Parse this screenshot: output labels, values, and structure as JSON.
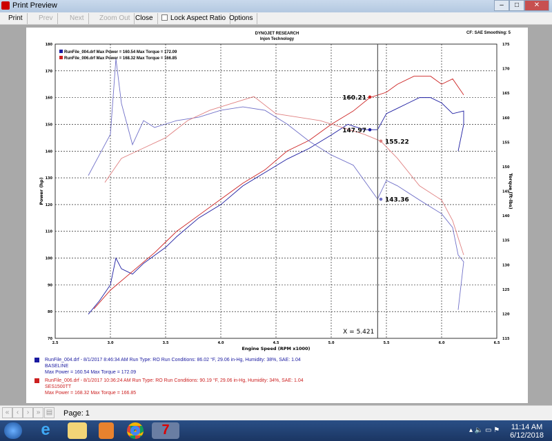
{
  "window": {
    "title": "Print Preview"
  },
  "toolbar": {
    "print": "Print",
    "prev": "Prev",
    "next": "Next",
    "zoom_out": "Zoom Out",
    "close": "Close",
    "lock_aspect": "Lock Aspect Ratio",
    "lock_checked": false,
    "options": "Options"
  },
  "report": {
    "company": "DYNOJET RESEARCH",
    "subtitle": "Injon Technology",
    "settings": "CF: SAE  Smoothing: 5",
    "legend": [
      "RunFile_004.drf Max Power = 160.54     Max Torque = 172.09",
      "RunFile_006.drf Max Power = 168.32     Max Torque = 166.85"
    ],
    "runs": [
      {
        "line1": "RunFile_004.drf - 8/1/2017 8:46:34 AM  Run Type: RO  Run Conditions: 86.02 °F, 29.06 in-Hg,  Humidity:  38%, SAE: 1.04",
        "line2": "BASELINE",
        "line3": "Max Power = 160.54  Max Torque = 172.09"
      },
      {
        "line1": "RunFile_006.drf - 8/1/2017 10:36:24 AM  Run Type: RO  Run Conditions: 90.19 °F, 29.06 in-Hg,  Humidity:  34%, SAE: 1.04",
        "line2": "SES1500TT",
        "line3": "Max Power = 168.32  Max Torque = 166.85"
      }
    ]
  },
  "chart_data": {
    "type": "line",
    "xlabel": "Engine Speed (RPM x1000)",
    "ylabel": "Power (hp)",
    "y2label": "Torque (ft-lbs)",
    "xlim": [
      2.5,
      6.5
    ],
    "ylim": [
      70,
      180
    ],
    "y2lim": [
      115,
      175
    ],
    "xticks": [
      "2.5",
      "3.0",
      "3.5",
      "4.0",
      "4.5",
      "5.0",
      "5.5",
      "6.0",
      "6.5"
    ],
    "yticks": [
      "70",
      "80",
      "90",
      "100",
      "110",
      "120",
      "130",
      "140",
      "150",
      "160",
      "170",
      "180"
    ],
    "y2ticks": [
      "115",
      "120",
      "125",
      "130",
      "135",
      "140",
      "145",
      "150",
      "155",
      "160",
      "165",
      "170",
      "175"
    ],
    "grid": true,
    "legend": "top-left",
    "cursor": {
      "x": 5.421,
      "label": "X = 5.421"
    },
    "markers": [
      {
        "label": "160.21",
        "series": 1,
        "axis": "power",
        "x": 5.35,
        "y": 160.21
      },
      {
        "label": "147.97",
        "series": 0,
        "axis": "power",
        "x": 5.35,
        "y": 147.97
      },
      {
        "label": "155.22",
        "series": 1,
        "axis": "torque",
        "x": 5.45,
        "y": 155.22
      },
      {
        "label": "143.36",
        "series": 0,
        "axis": "torque",
        "x": 5.45,
        "y": 143.36
      }
    ],
    "series": [
      {
        "name": "RunFile_004.drf",
        "kind": "power",
        "color": "#1a1aa0",
        "axis": "left",
        "points": [
          [
            2.8,
            79
          ],
          [
            2.9,
            84
          ],
          [
            3.0,
            90
          ],
          [
            3.05,
            100
          ],
          [
            3.1,
            96
          ],
          [
            3.2,
            94
          ],
          [
            3.3,
            98
          ],
          [
            3.4,
            101
          ],
          [
            3.5,
            104
          ],
          [
            3.6,
            108
          ],
          [
            3.8,
            115
          ],
          [
            4.0,
            120
          ],
          [
            4.2,
            127
          ],
          [
            4.4,
            132
          ],
          [
            4.6,
            137
          ],
          [
            4.8,
            141
          ],
          [
            5.0,
            146
          ],
          [
            5.15,
            150
          ],
          [
            5.3,
            148
          ],
          [
            5.42,
            148
          ],
          [
            5.5,
            154
          ],
          [
            5.6,
            156
          ],
          [
            5.7,
            158
          ],
          [
            5.8,
            160
          ],
          [
            5.9,
            160
          ],
          [
            6.0,
            158
          ],
          [
            6.1,
            154
          ],
          [
            6.2,
            155
          ],
          [
            6.2,
            150
          ],
          [
            6.15,
            140
          ]
        ]
      },
      {
        "name": "RunFile_006.drf",
        "kind": "power",
        "color": "#cc2020",
        "axis": "left",
        "points": [
          [
            2.85,
            81
          ],
          [
            3.0,
            88
          ],
          [
            3.2,
            95
          ],
          [
            3.4,
            102
          ],
          [
            3.5,
            106
          ],
          [
            3.6,
            110
          ],
          [
            3.8,
            116
          ],
          [
            4.0,
            122
          ],
          [
            4.2,
            128
          ],
          [
            4.4,
            133
          ],
          [
            4.6,
            140
          ],
          [
            4.8,
            144
          ],
          [
            5.0,
            150
          ],
          [
            5.2,
            155
          ],
          [
            5.35,
            160
          ],
          [
            5.5,
            162
          ],
          [
            5.6,
            165
          ],
          [
            5.75,
            168
          ],
          [
            5.9,
            168
          ],
          [
            6.0,
            165
          ],
          [
            6.1,
            167
          ],
          [
            6.2,
            161
          ]
        ]
      },
      {
        "name": "RunFile_004.drf",
        "kind": "torque",
        "color": "#7070c8",
        "axis": "right",
        "points": [
          [
            2.8,
            148.2
          ],
          [
            2.9,
            152.4
          ],
          [
            3.0,
            156.6
          ],
          [
            3.05,
            172.0
          ],
          [
            3.1,
            162.9
          ],
          [
            3.2,
            154.5
          ],
          [
            3.3,
            159.4
          ],
          [
            3.4,
            158.0
          ],
          [
            3.5,
            158.7
          ],
          [
            3.6,
            159.4
          ],
          [
            3.8,
            160.1
          ],
          [
            4.0,
            161.5
          ],
          [
            4.2,
            162.2
          ],
          [
            4.4,
            161.5
          ],
          [
            4.6,
            158.7
          ],
          [
            4.8,
            155.2
          ],
          [
            5.0,
            152.4
          ],
          [
            5.2,
            150.3
          ],
          [
            5.42,
            143.4
          ],
          [
            5.5,
            147.2
          ],
          [
            5.6,
            146.1
          ],
          [
            5.8,
            143.2
          ],
          [
            6.0,
            140.4
          ],
          [
            6.1,
            137.6
          ],
          [
            6.15,
            132.0
          ],
          [
            6.2,
            130.6
          ],
          [
            6.15,
            120.8
          ]
        ]
      },
      {
        "name": "RunFile_006.drf",
        "kind": "torque",
        "color": "#e08080",
        "axis": "right",
        "points": [
          [
            2.95,
            146.8
          ],
          [
            3.1,
            151.7
          ],
          [
            3.3,
            153.8
          ],
          [
            3.5,
            155.9
          ],
          [
            3.7,
            159.4
          ],
          [
            3.9,
            161.5
          ],
          [
            4.1,
            162.9
          ],
          [
            4.3,
            164.3
          ],
          [
            4.5,
            160.8
          ],
          [
            4.7,
            160.1
          ],
          [
            4.9,
            159.4
          ],
          [
            5.1,
            158.0
          ],
          [
            5.3,
            156.6
          ],
          [
            5.45,
            155.2
          ],
          [
            5.6,
            151.7
          ],
          [
            5.8,
            146.1
          ],
          [
            6.0,
            143.2
          ],
          [
            6.1,
            139.0
          ],
          [
            6.2,
            132.0
          ]
        ]
      }
    ]
  },
  "status": {
    "page": "Page: 1"
  },
  "tray": {
    "time": "11:14 AM",
    "date": "6/12/2018"
  }
}
